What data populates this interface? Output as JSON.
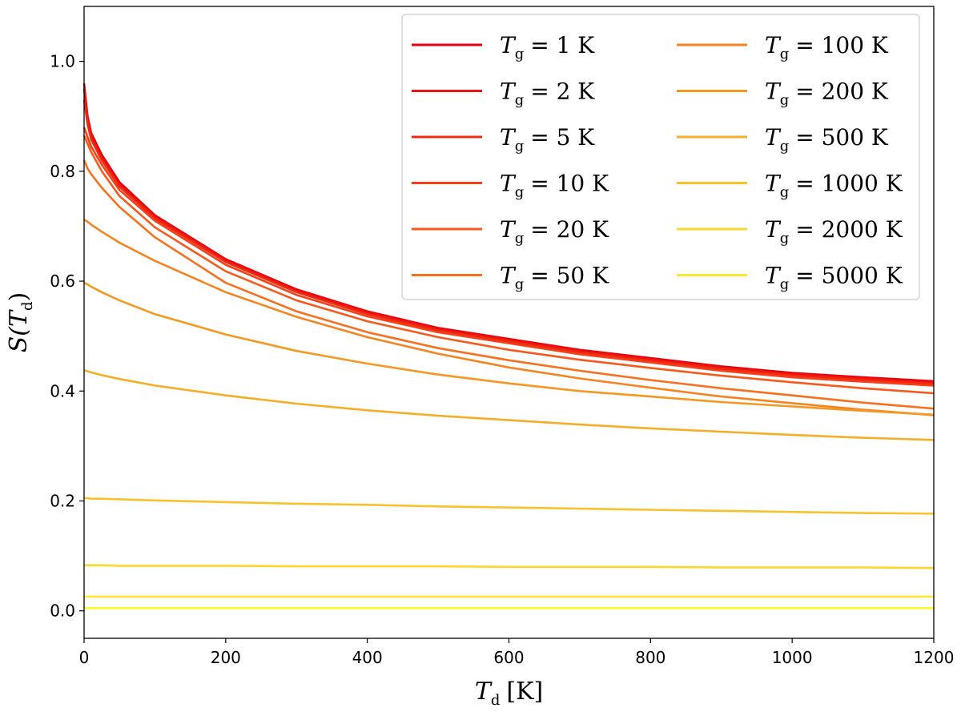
{
  "chart_data": {
    "type": "line",
    "title": "",
    "xlabel": {
      "main": "T",
      "sub": "d",
      "unit": "[K]"
    },
    "ylabel": {
      "func": "S(",
      "main": "T",
      "sub": "d",
      "close": ")"
    },
    "xlim": [
      0,
      1200
    ],
    "ylim": [
      -0.05,
      1.1
    ],
    "xticks": [
      0,
      200,
      400,
      600,
      800,
      1000,
      1200
    ],
    "xtick_labels": [
      "0",
      "200",
      "400",
      "600",
      "800",
      "1000",
      "1200"
    ],
    "yticks": [
      0.0,
      0.2,
      0.4,
      0.6,
      0.8,
      1.0
    ],
    "ytick_labels": [
      "0.0",
      "0.2",
      "0.4",
      "0.6",
      "0.8",
      "1.0"
    ],
    "grid": false,
    "legend_position": "top-right",
    "legend_columns": 2,
    "x": [
      0,
      5,
      10,
      25,
      50,
      100,
      200,
      300,
      400,
      500,
      600,
      700,
      800,
      900,
      1000,
      1100,
      1200
    ],
    "series": [
      {
        "name": "T_g = 1 K",
        "legend_main": "T",
        "legend_sub": "g",
        "legend_value": "= 1 K",
        "color": "#e8000b",
        "values": [
          0.96,
          0.9,
          0.87,
          0.83,
          0.78,
          0.72,
          0.64,
          0.585,
          0.545,
          0.515,
          0.495,
          0.475,
          0.46,
          0.445,
          0.433,
          0.425,
          0.418
        ]
      },
      {
        "name": "T_g = 2 K",
        "legend_main": "T",
        "legend_sub": "g",
        "legend_value": "= 2 K",
        "color": "#ec1410",
        "values": [
          0.95,
          0.895,
          0.865,
          0.825,
          0.775,
          0.718,
          0.638,
          0.583,
          0.543,
          0.513,
          0.493,
          0.473,
          0.458,
          0.443,
          0.431,
          0.423,
          0.416
        ]
      },
      {
        "name": "T_g = 5 K",
        "legend_main": "T",
        "legend_sub": "g",
        "legend_value": "= 5 K",
        "color": "#f02a12",
        "values": [
          0.93,
          0.885,
          0.858,
          0.82,
          0.772,
          0.714,
          0.635,
          0.58,
          0.54,
          0.51,
          0.49,
          0.47,
          0.455,
          0.44,
          0.428,
          0.42,
          0.413
        ]
      },
      {
        "name": "T_g = 10 K",
        "legend_main": "T",
        "legend_sub": "g",
        "legend_value": "= 10 K",
        "color": "#f34018",
        "values": [
          0.88,
          0.862,
          0.845,
          0.812,
          0.766,
          0.71,
          0.63,
          0.575,
          0.536,
          0.507,
          0.487,
          0.467,
          0.452,
          0.437,
          0.425,
          0.417,
          0.41
        ]
      },
      {
        "name": "T_g = 20 K",
        "legend_main": "T",
        "legend_sub": "g",
        "legend_value": "= 20 K",
        "color": "#f55a1c",
        "values": [
          0.865,
          0.85,
          0.835,
          0.8,
          0.755,
          0.698,
          0.618,
          0.565,
          0.527,
          0.498,
          0.475,
          0.457,
          0.442,
          0.428,
          0.416,
          0.405,
          0.396
        ]
      },
      {
        "name": "T_g = 50 K",
        "legend_main": "T",
        "legend_sub": "g",
        "legend_value": "= 50 K",
        "color": "#f6701e",
        "values": [
          0.82,
          0.805,
          0.795,
          0.77,
          0.735,
          0.68,
          0.597,
          0.545,
          0.507,
          0.478,
          0.456,
          0.437,
          0.42,
          0.405,
          0.392,
          0.379,
          0.368
        ]
      },
      {
        "name": "T_g = 100 K",
        "legend_main": "T",
        "legend_sub": "g",
        "legend_value": "= 100 K",
        "color": "#f58420",
        "values": [
          0.712,
          0.708,
          0.703,
          0.69,
          0.67,
          0.637,
          0.58,
          0.535,
          0.498,
          0.468,
          0.443,
          0.423,
          0.406,
          0.39,
          0.378,
          0.366,
          0.356
        ]
      },
      {
        "name": "T_g = 200 K",
        "legend_main": "T",
        "legend_sub": "g",
        "legend_value": "= 200 K",
        "color": "#f59822",
        "values": [
          0.597,
          0.594,
          0.59,
          0.58,
          0.565,
          0.54,
          0.503,
          0.473,
          0.45,
          0.43,
          0.414,
          0.4,
          0.39,
          0.38,
          0.372,
          0.364,
          0.357
        ]
      },
      {
        "name": "T_g = 500 K",
        "legend_main": "T",
        "legend_sub": "g",
        "legend_value": "= 500 K",
        "color": "#f7ad26",
        "values": [
          0.438,
          0.436,
          0.434,
          0.429,
          0.422,
          0.41,
          0.392,
          0.377,
          0.365,
          0.355,
          0.347,
          0.339,
          0.332,
          0.326,
          0.32,
          0.315,
          0.311
        ]
      },
      {
        "name": "T_g = 1000 K",
        "legend_main": "T",
        "legend_sub": "g",
        "legend_value": "= 1000 K",
        "color": "#f9c12a",
        "values": [
          0.205,
          0.205,
          0.204,
          0.204,
          0.203,
          0.201,
          0.198,
          0.195,
          0.193,
          0.19,
          0.188,
          0.186,
          0.184,
          0.182,
          0.18,
          0.178,
          0.177
        ]
      },
      {
        "name": "T_g = 2000 K",
        "legend_main": "T",
        "legend_sub": "g",
        "legend_value": "= 2000 K",
        "color": "#fbd72c",
        "values": [
          0.083,
          0.083,
          0.083,
          0.083,
          0.082,
          0.082,
          0.082,
          0.081,
          0.081,
          0.081,
          0.08,
          0.08,
          0.08,
          0.079,
          0.079,
          0.079,
          0.078
        ]
      },
      {
        "name": "T_g = 5000 K",
        "legend_main": "T",
        "legend_sub": "g",
        "legend_value": "= 5000 K",
        "color": "#fde92e",
        "values": [
          0.026,
          0.026,
          0.026,
          0.026,
          0.026,
          0.026,
          0.026,
          0.026,
          0.026,
          0.026,
          0.026,
          0.026,
          0.026,
          0.026,
          0.026,
          0.026,
          0.026
        ]
      },
      {
        "name": "T_g = 5000 K (extra)",
        "legend_main": "",
        "legend_sub": "",
        "legend_value": "",
        "color": "#fff72f",
        "values": [
          0.005,
          0.005,
          0.005,
          0.005,
          0.005,
          0.005,
          0.005,
          0.005,
          0.005,
          0.005,
          0.005,
          0.005,
          0.005,
          0.005,
          0.005,
          0.005,
          0.005
        ]
      }
    ]
  }
}
